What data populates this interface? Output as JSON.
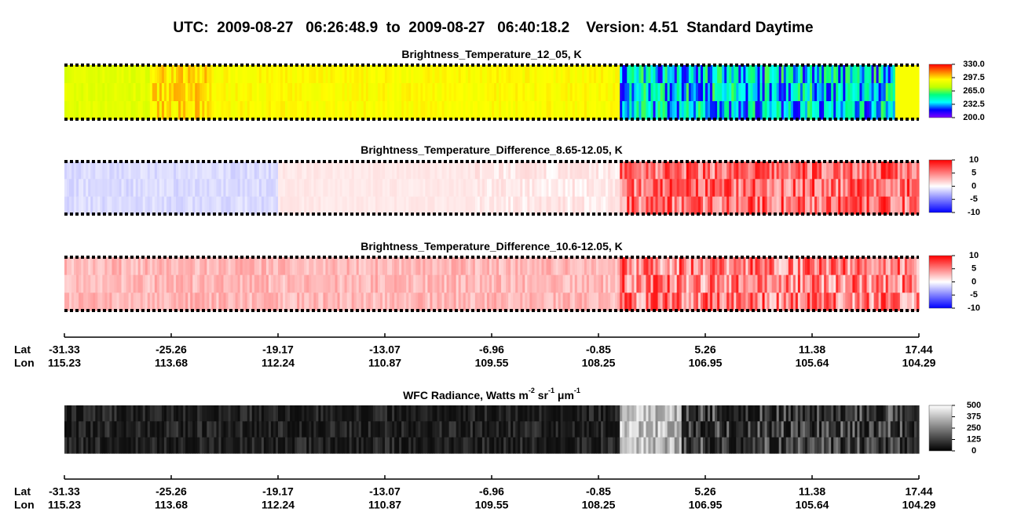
{
  "header": {
    "title": "UTC:  2009-08-27   06:26:48.9  to  2009-08-27   06:40:18.2    Version: 4.51  Standard Daytime"
  },
  "panels": [
    {
      "title_parts": [
        "Brightness_Temperature_12_05, K"
      ],
      "colors": [
        "#8000ff",
        "#0000ff",
        "#00ffff",
        "#00ff80",
        "#c0ff00",
        "#ffff00",
        "#ff8000",
        "#ff0000"
      ],
      "ticks": [
        {
          "value": 330,
          "label": "330.0"
        },
        {
          "value": 297.5,
          "label": "297.5"
        },
        {
          "value": 265,
          "label": "265.0"
        },
        {
          "value": 232.5,
          "label": "232.5"
        },
        {
          "value": 200,
          "label": "200.0"
        }
      ]
    },
    {
      "title_parts": [
        "Brightness_Temperature_Difference_8.65-12.05, K"
      ],
      "colors": [
        "#0000ff",
        "#ffffff",
        "#ff0000"
      ],
      "ticks": [
        10,
        5,
        0,
        -5,
        -10
      ]
    },
    {
      "title_parts": [
        "Brightness_Temperature_Difference_10.6-12.05, K"
      ],
      "colors": [
        "#0000ff",
        "#ffffff",
        "#ff0000"
      ],
      "ticks": [
        10,
        5,
        0,
        -5,
        -10
      ]
    },
    {
      "title_parts": [
        "WFC Radiance, Watts m",
        "-2",
        " sr",
        "-1",
        " μm",
        "-1"
      ],
      "colors": [
        "#000000",
        "#ffffff"
      ],
      "ticks": [
        500,
        375,
        250,
        125,
        0
      ]
    }
  ],
  "axis": {
    "lat_label": "Lat",
    "lon_label": "Lon",
    "lat": [
      -31.33,
      -25.26,
      -19.17,
      -13.07,
      -6.96,
      -0.85,
      5.26,
      11.38,
      17.44
    ],
    "lon": [
      115.23,
      113.68,
      112.24,
      110.87,
      109.55,
      108.25,
      106.95,
      105.64,
      104.29
    ]
  }
}
